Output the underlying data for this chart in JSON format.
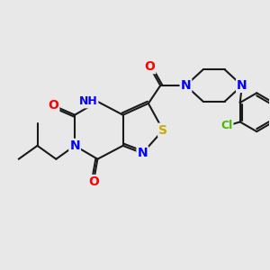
{
  "bg_color": "#e8e8e8",
  "bond_color": "#1a1a1a",
  "bond_width": 1.5,
  "atom_colors": {
    "N": "#0000ff",
    "O": "#ff0000",
    "S": "#ccaa00",
    "Cl": "#44bb00",
    "C": "#1a1a1a"
  },
  "font_size": 9,
  "fig_size": [
    3.0,
    3.0
  ],
  "dpi": 100
}
